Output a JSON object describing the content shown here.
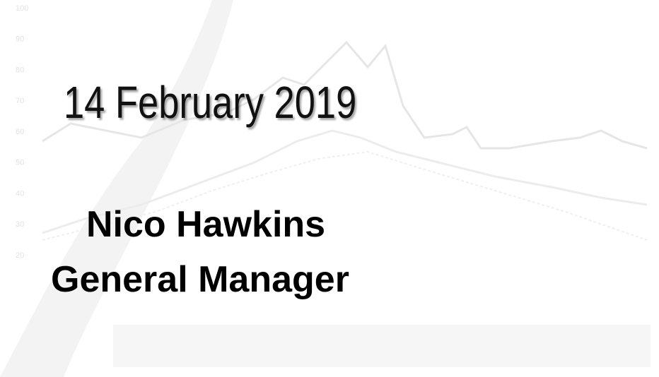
{
  "slide": {
    "date": "14 February 2019",
    "name": "Nico Hawkins",
    "role": "General Manager",
    "background": {
      "yticks": [
        100,
        90,
        80,
        70,
        60,
        50,
        40,
        30,
        20
      ]
    }
  }
}
